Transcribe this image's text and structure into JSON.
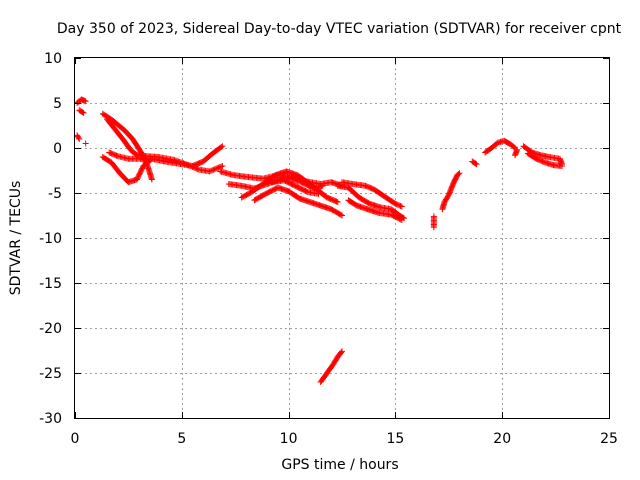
{
  "chart_data": {
    "type": "scatter",
    "title": "Day 350 of 2023, Sidereal Day-to-day VTEC variation (SDTVAR) for receiver cpnt",
    "xlabel": "GPS time / hours",
    "ylabel": "SDTVAR / TECUs",
    "xlim": [
      0,
      25
    ],
    "ylim": [
      -30,
      10
    ],
    "xticks": [
      0,
      5,
      10,
      15,
      20,
      25
    ],
    "yticks": [
      -30,
      -25,
      -20,
      -15,
      -10,
      -5,
      0,
      5,
      10
    ],
    "grid": true,
    "marker": "+",
    "color": "#ff0000",
    "series": [
      {
        "name": "SDTVAR",
        "tracks": [
          [
            [
              0.1,
              5.0
            ],
            [
              0.3,
              5.4
            ],
            [
              0.5,
              5.2
            ]
          ],
          [
            [
              0.2,
              4.2
            ],
            [
              0.4,
              3.9
            ]
          ],
          [
            [
              0.1,
              1.4
            ],
            [
              0.2,
              1.0
            ]
          ],
          [
            [
              0.5,
              0.5
            ]
          ],
          [
            [
              1.3,
              -1.0
            ],
            [
              1.7,
              -1.6
            ],
            [
              2.1,
              -2.8
            ],
            [
              2.5,
              -3.8
            ],
            [
              2.9,
              -3.5
            ],
            [
              3.2,
              -2.0
            ],
            [
              3.6,
              -1.2
            ],
            [
              4.2,
              -1.5
            ],
            [
              5.0,
              -1.8
            ],
            [
              5.5,
              -2.0
            ],
            [
              6.0,
              -1.5
            ],
            [
              6.5,
              -0.5
            ],
            [
              6.9,
              0.2
            ]
          ],
          [
            [
              1.3,
              3.8
            ],
            [
              1.8,
              3.0
            ],
            [
              2.3,
              2.0
            ],
            [
              2.7,
              1.0
            ],
            [
              3.1,
              -0.5
            ],
            [
              3.4,
              -2.0
            ],
            [
              3.6,
              -3.5
            ]
          ],
          [
            [
              1.5,
              3.2
            ],
            [
              1.9,
              2.0
            ],
            [
              2.3,
              0.8
            ],
            [
              2.6,
              -0.2
            ],
            [
              2.9,
              -0.8
            ],
            [
              3.3,
              -0.9
            ],
            [
              3.9,
              -1.0
            ],
            [
              4.6,
              -1.3
            ],
            [
              5.2,
              -1.8
            ],
            [
              5.8,
              -2.4
            ],
            [
              6.3,
              -2.6
            ],
            [
              6.9,
              -2.0
            ]
          ],
          [
            [
              1.6,
              -0.5
            ],
            [
              2.0,
              -0.9
            ],
            [
              2.5,
              -1.2
            ],
            [
              3.0,
              -1.2
            ],
            [
              3.5,
              -1.4
            ]
          ],
          [
            [
              6.8,
              -2.6
            ],
            [
              7.4,
              -3.0
            ],
            [
              8.0,
              -3.2
            ],
            [
              8.8,
              -3.4
            ],
            [
              9.5,
              -3.0
            ],
            [
              10.2,
              -3.2
            ],
            [
              10.8,
              -3.7
            ],
            [
              11.5,
              -4.0
            ],
            [
              12.0,
              -3.8
            ],
            [
              12.5,
              -4.2
            ]
          ],
          [
            [
              7.2,
              -4.0
            ],
            [
              7.8,
              -4.2
            ],
            [
              8.4,
              -4.5
            ],
            [
              9.0,
              -4.0
            ],
            [
              9.6,
              -3.5
            ],
            [
              10.0,
              -3.3
            ],
            [
              10.6,
              -3.8
            ],
            [
              11.2,
              -4.5
            ],
            [
              11.6,
              -4.2
            ]
          ],
          [
            [
              7.8,
              -5.5
            ],
            [
              8.2,
              -5.0
            ],
            [
              8.8,
              -4.0
            ],
            [
              9.4,
              -3.0
            ],
            [
              9.9,
              -2.6
            ],
            [
              10.4,
              -3.0
            ],
            [
              11.0,
              -4.0
            ],
            [
              11.8,
              -5.5
            ],
            [
              12.3,
              -6.0
            ]
          ],
          [
            [
              8.4,
              -5.8
            ],
            [
              9.0,
              -5.0
            ],
            [
              9.5,
              -4.4
            ],
            [
              10.0,
              -4.8
            ],
            [
              10.5,
              -5.6
            ],
            [
              11.0,
              -6.0
            ],
            [
              11.5,
              -6.4
            ],
            [
              12.0,
              -6.8
            ],
            [
              12.5,
              -7.5
            ]
          ],
          [
            [
              9.2,
              -3.8
            ],
            [
              9.8,
              -3.6
            ],
            [
              10.3,
              -4.2
            ],
            [
              10.9,
              -4.9
            ],
            [
              11.4,
              -5.1
            ]
          ],
          [
            [
              12.5,
              -3.8
            ],
            [
              13.0,
              -4.0
            ],
            [
              13.6,
              -4.2
            ],
            [
              14.0,
              -4.6
            ],
            [
              14.5,
              -5.4
            ],
            [
              15.0,
              -6.2
            ],
            [
              15.3,
              -6.5
            ]
          ],
          [
            [
              12.3,
              -4.2
            ],
            [
              12.8,
              -4.4
            ],
            [
              13.3,
              -5.5
            ],
            [
              13.8,
              -6.2
            ],
            [
              14.3,
              -6.6
            ],
            [
              14.8,
              -6.8
            ],
            [
              15.2,
              -7.5
            ],
            [
              15.4,
              -7.8
            ]
          ],
          [
            [
              12.8,
              -5.8
            ],
            [
              13.2,
              -6.4
            ],
            [
              13.7,
              -6.8
            ],
            [
              14.2,
              -7.2
            ],
            [
              14.8,
              -7.4
            ],
            [
              15.3,
              -8.0
            ]
          ],
          [
            [
              16.8,
              -7.6
            ],
            [
              16.8,
              -8.8
            ]
          ],
          [
            [
              17.2,
              -6.8
            ],
            [
              17.3,
              -6.0
            ],
            [
              17.5,
              -5.2
            ],
            [
              17.7,
              -4.0
            ],
            [
              17.9,
              -3.0
            ],
            [
              18.0,
              -2.8
            ]
          ],
          [
            [
              18.6,
              -1.5
            ],
            [
              18.8,
              -1.8
            ]
          ],
          [
            [
              19.2,
              -0.5
            ],
            [
              19.5,
              0.0
            ],
            [
              19.8,
              0.6
            ],
            [
              20.1,
              0.8
            ],
            [
              20.4,
              0.4
            ],
            [
              20.6,
              0.0
            ]
          ],
          [
            [
              20.6,
              -0.8
            ],
            [
              20.7,
              -0.2
            ]
          ],
          [
            [
              21.0,
              0.2
            ],
            [
              21.4,
              -0.5
            ],
            [
              21.8,
              -0.8
            ],
            [
              22.2,
              -1.0
            ],
            [
              22.7,
              -1.2
            ],
            [
              22.8,
              -1.8
            ]
          ],
          [
            [
              21.2,
              -0.6
            ],
            [
              21.6,
              -1.2
            ],
            [
              22.0,
              -1.6
            ],
            [
              22.4,
              -1.9
            ],
            [
              22.8,
              -2.0
            ]
          ],
          [
            [
              11.5,
              -26.0
            ],
            [
              11.8,
              -25.0
            ],
            [
              12.1,
              -24.0
            ],
            [
              12.3,
              -23.2
            ],
            [
              12.5,
              -22.6
            ]
          ]
        ]
      }
    ]
  }
}
